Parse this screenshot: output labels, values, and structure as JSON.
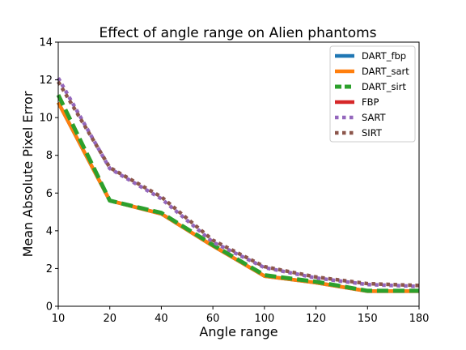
{
  "chart_data": {
    "type": "line",
    "title": "Effect of angle range on Alien phantoms",
    "xlabel": "Angle range",
    "ylabel": "Mean Absolute Pixel Error",
    "categories": [
      "10",
      "20",
      "40",
      "60",
      "100",
      "120",
      "150",
      "180"
    ],
    "y_ticks": [
      0,
      2,
      4,
      6,
      8,
      10,
      12,
      14
    ],
    "ylim": [
      0,
      14
    ],
    "legend_position": "top-right",
    "grid": false,
    "series": [
      {
        "name": "DART_fbp",
        "color": "#1f77b4",
        "style": "solid",
        "values": [
          10.8,
          5.6,
          4.9,
          3.2,
          1.6,
          1.25,
          0.8,
          0.8
        ]
      },
      {
        "name": "DART_sart",
        "color": "#ff7f0e",
        "style": "solid",
        "values": [
          10.8,
          5.6,
          4.9,
          3.2,
          1.6,
          1.25,
          0.8,
          0.8
        ]
      },
      {
        "name": "DART_sirt",
        "color": "#2ca02c",
        "style": "dashed",
        "values": [
          11.2,
          5.6,
          4.95,
          3.25,
          1.65,
          1.3,
          0.82,
          0.82
        ]
      },
      {
        "name": "FBP",
        "color": "#d62728",
        "style": "solid",
        "values": [
          null,
          null,
          null,
          null,
          null,
          null,
          null,
          null
        ]
      },
      {
        "name": "SART",
        "color": "#9467bd",
        "style": "dotted",
        "values": [
          12.1,
          7.3,
          5.7,
          3.4,
          2.05,
          1.5,
          1.15,
          1.05
        ]
      },
      {
        "name": "SIRT",
        "color": "#8c564b",
        "style": "dotted",
        "values": [
          11.9,
          7.35,
          5.8,
          3.5,
          2.1,
          1.55,
          1.2,
          1.1
        ]
      }
    ]
  }
}
